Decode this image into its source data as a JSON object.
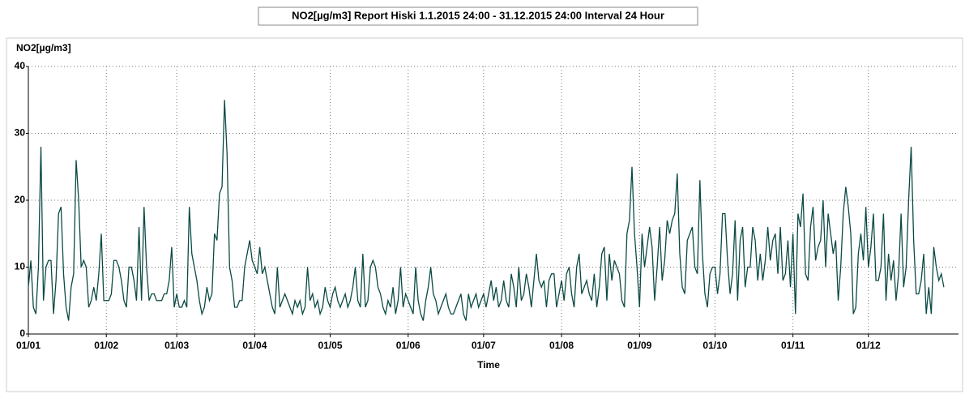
{
  "chart_data": {
    "type": "line",
    "title": "NO2[µg/m3]  Report Hiski 1.1.2015 24:00 - 31.12.2015 24:00 Interval 24 Hour",
    "ylabel": "NO2[µg/m3]",
    "xlabel": "Time",
    "color": "#0b4a44",
    "grid": true,
    "ylim": [
      0,
      40
    ],
    "yticks": [
      0,
      10,
      20,
      30,
      40
    ],
    "xlim": [
      0,
      365
    ],
    "xticks": [
      {
        "value": 0,
        "label": "01/01"
      },
      {
        "value": 31,
        "label": "01/02"
      },
      {
        "value": 59,
        "label": "01/03"
      },
      {
        "value": 90,
        "label": "01/04"
      },
      {
        "value": 120,
        "label": "01/05"
      },
      {
        "value": 151,
        "label": "01/06"
      },
      {
        "value": 181,
        "label": "01/07"
      },
      {
        "value": 212,
        "label": "01/08"
      },
      {
        "value": 243,
        "label": "01/09"
      },
      {
        "value": 273,
        "label": "01/10"
      },
      {
        "value": 304,
        "label": "01/11"
      },
      {
        "value": 334,
        "label": "01/12"
      }
    ],
    "values": [
      7,
      11,
      4,
      3,
      10,
      28,
      5,
      10,
      11,
      11,
      3,
      8,
      18,
      19,
      9,
      4,
      2,
      7,
      9,
      26,
      20,
      10,
      11,
      10,
      4,
      5,
      7,
      5,
      9,
      15,
      5,
      5,
      5,
      6,
      11,
      11,
      10,
      8,
      5,
      4,
      10,
      10,
      8,
      5,
      16,
      5,
      19,
      10,
      5,
      6,
      6,
      5,
      5,
      5,
      6,
      6,
      8,
      13,
      4,
      6,
      4,
      4,
      5,
      4,
      19,
      12,
      10,
      8,
      5,
      3,
      4,
      7,
      5,
      6,
      15,
      14,
      21,
      22,
      35,
      27,
      10,
      8,
      4,
      4,
      5,
      5,
      10,
      12,
      14,
      11,
      10,
      9,
      13,
      9,
      10,
      8,
      6,
      4,
      3,
      10,
      4,
      5,
      6,
      5,
      4,
      3,
      5,
      4,
      5,
      3,
      4,
      10,
      5,
      6,
      4,
      5,
      3,
      4,
      7,
      5,
      4,
      6,
      7,
      5,
      4,
      5,
      6,
      4,
      5,
      7,
      10,
      5,
      4,
      12,
      4,
      5,
      10,
      11,
      10,
      7,
      6,
      4,
      3,
      5,
      4,
      7,
      3,
      5,
      10,
      4,
      6,
      5,
      4,
      3,
      10,
      5,
      3,
      2,
      5,
      7,
      10,
      6,
      5,
      3,
      4,
      5,
      6,
      4,
      3,
      3,
      4,
      5,
      6,
      3,
      2,
      6,
      4,
      5,
      6,
      4,
      5,
      6,
      4,
      6,
      8,
      5,
      7,
      4,
      5,
      8,
      5,
      4,
      9,
      7,
      4,
      10,
      5,
      6,
      9,
      7,
      4,
      8,
      12,
      8,
      7,
      8,
      4,
      8,
      9,
      9,
      4,
      6,
      8,
      5,
      9,
      10,
      6,
      4,
      10,
      12,
      6,
      7,
      8,
      6,
      5,
      9,
      4,
      7,
      12,
      13,
      5,
      12,
      8,
      11,
      10,
      9,
      5,
      4,
      15,
      17,
      25,
      15,
      10,
      4,
      15,
      10,
      13,
      16,
      13,
      5,
      10,
      16,
      8,
      11,
      17,
      15,
      17,
      18,
      24,
      12,
      7,
      6,
      14,
      15,
      16,
      10,
      9,
      23,
      12,
      6,
      4,
      9,
      10,
      10,
      6,
      9,
      18,
      18,
      11,
      6,
      9,
      17,
      5,
      14,
      16,
      7,
      10,
      10,
      16,
      14,
      8,
      12,
      8,
      11,
      16,
      11,
      14,
      15,
      9,
      16,
      8,
      9,
      14,
      7,
      15,
      3,
      18,
      16,
      21,
      9,
      8,
      16,
      19,
      11,
      13,
      14,
      20,
      10,
      18,
      15,
      12,
      14,
      5,
      10,
      18,
      22,
      19,
      15,
      3,
      4,
      12,
      15,
      11,
      19,
      10,
      13,
      18,
      8,
      8,
      10,
      18,
      5,
      12,
      8,
      11,
      5,
      9,
      18,
      7,
      10,
      20,
      28,
      14,
      6,
      6,
      8,
      12,
      3,
      7,
      3,
      13,
      10,
      8,
      9,
      7
    ]
  }
}
